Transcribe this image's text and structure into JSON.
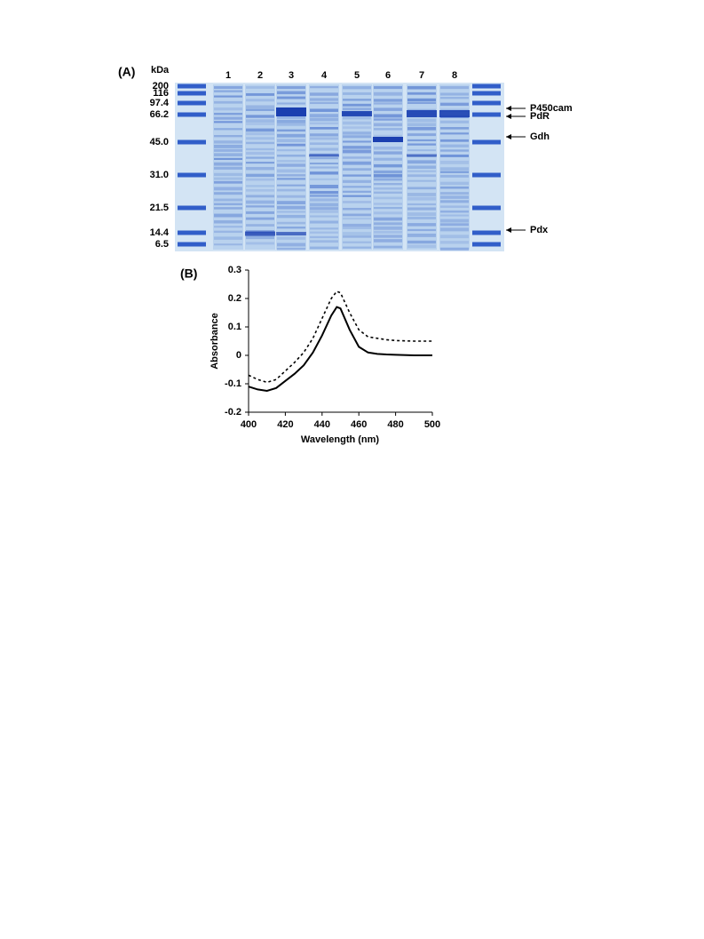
{
  "panel_a": {
    "label": "(A)",
    "unit": "kDa",
    "markers": [
      "200",
      "116",
      "97.4",
      "66.2",
      "45.0",
      "31.0",
      "21.5",
      "14.4",
      "6.5"
    ],
    "lanes": [
      "1",
      "2",
      "3",
      "4",
      "5",
      "6",
      "7",
      "8"
    ],
    "bands": [
      "P450cam",
      "PdR",
      "Gdh",
      "Pdx"
    ]
  },
  "chart_data": {
    "type": "line",
    "label": "(B)",
    "xlabel": "Wavelength (nm)",
    "ylabel": "Absorbance",
    "x": [
      400,
      405,
      410,
      415,
      420,
      425,
      430,
      435,
      440,
      445,
      448,
      450,
      455,
      460,
      465,
      470,
      475,
      480,
      490,
      500
    ],
    "series": [
      {
        "color": "#000000",
        "style": "solid",
        "values": [
          -0.11,
          -0.12,
          -0.125,
          -0.115,
          -0.09,
          -0.065,
          -0.035,
          0.01,
          0.07,
          0.14,
          0.17,
          0.165,
          0.09,
          0.03,
          0.01,
          0.005,
          0.003,
          0.002,
          0,
          0
        ]
      },
      {
        "color": "#000000",
        "style": "dashed",
        "values": [
          -0.07,
          -0.085,
          -0.095,
          -0.085,
          -0.055,
          -0.025,
          0.01,
          0.06,
          0.13,
          0.2,
          0.225,
          0.22,
          0.15,
          0.09,
          0.065,
          0.06,
          0.055,
          0.052,
          0.05,
          0.05
        ]
      }
    ],
    "xlim": [
      400,
      500
    ],
    "xticks": [
      400,
      420,
      440,
      460,
      480,
      500
    ],
    "ylim": [
      -0.2,
      0.3
    ],
    "yticks": [
      -0.2,
      -0.1,
      0,
      0.1,
      0.2,
      0.3
    ]
  }
}
